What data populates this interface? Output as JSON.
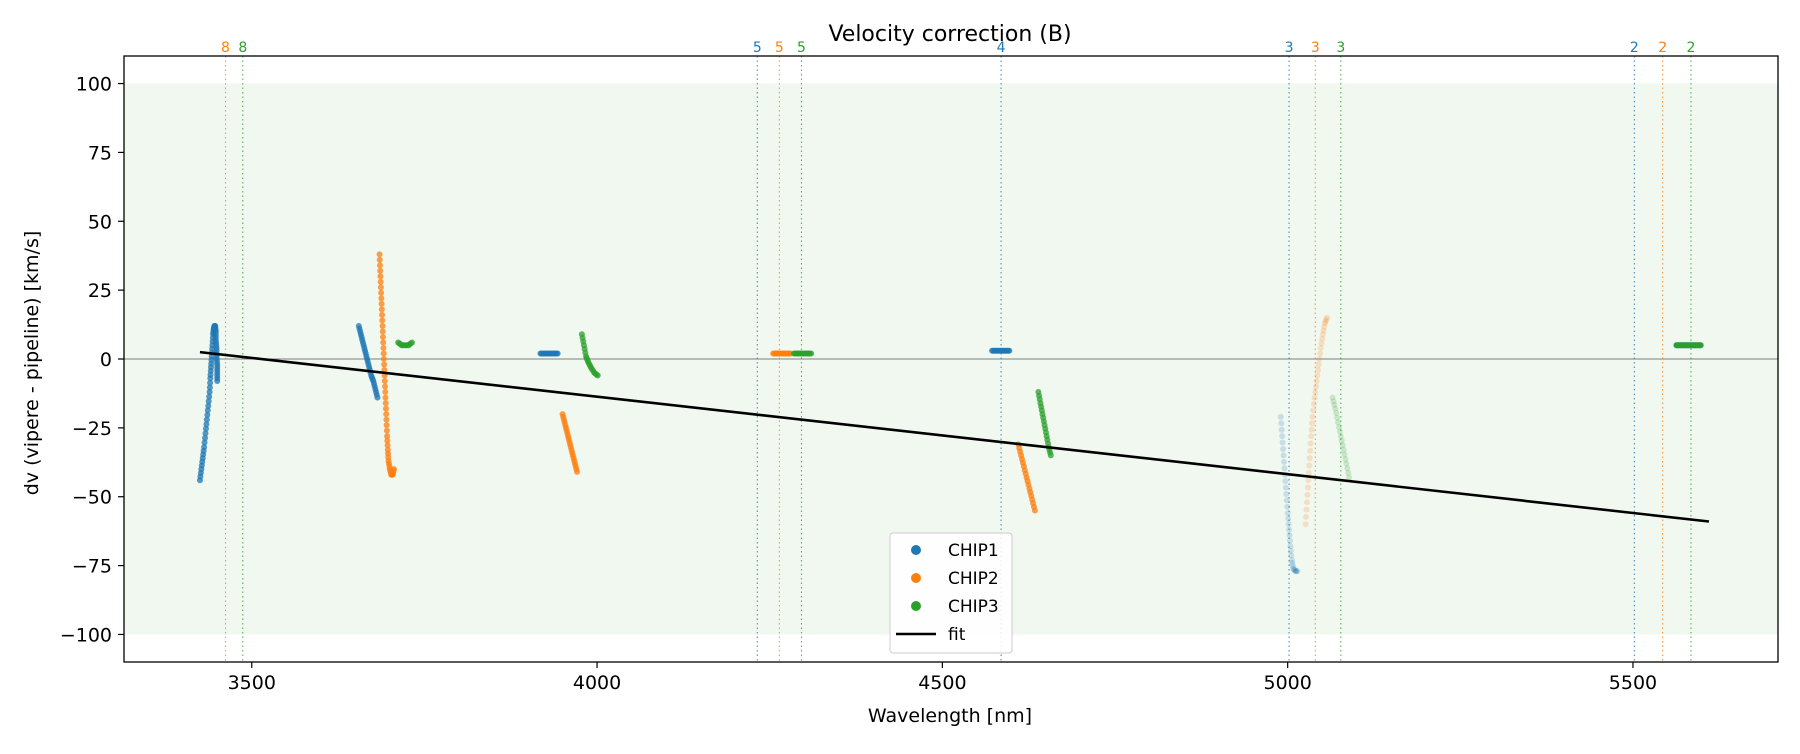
{
  "chart_data": {
    "type": "scatter",
    "title": "Velocity correction (B)",
    "xlabel": "Wavelength [nm]",
    "ylabel": "dv (vipere - pipeline) [km/s]",
    "xlim": [
      3315,
      5710
    ],
    "ylim": [
      -110,
      110
    ],
    "xticks": [
      3500,
      4000,
      4500,
      5000,
      5500
    ],
    "yticks": [
      -100,
      -75,
      -50,
      -25,
      0,
      25,
      50,
      75,
      100
    ],
    "shaded_band": [
      -100,
      100
    ],
    "zero_line": 0,
    "grid": false,
    "legend_position": "bottom-center",
    "colors": {
      "CHIP1": "#1f77b4",
      "CHIP2": "#ff7f0e",
      "CHIP3": "#2ca02c",
      "fit": "#000000",
      "band": "#2ca02c",
      "zero": "#808080"
    },
    "order_markers": [
      {
        "label": "8",
        "x": 3462,
        "series": "CHIP2"
      },
      {
        "label": "8",
        "x": 3487,
        "series": "CHIP3"
      },
      {
        "label": "5",
        "x": 4232,
        "series": "CHIP1"
      },
      {
        "label": "5",
        "x": 4264,
        "series": "CHIP2"
      },
      {
        "label": "5",
        "x": 4296,
        "series": "CHIP3"
      },
      {
        "label": "4",
        "x": 4585,
        "series": "CHIP1"
      },
      {
        "label": "3",
        "x": 5002,
        "series": "CHIP1"
      },
      {
        "label": "3",
        "x": 5040,
        "series": "CHIP2"
      },
      {
        "label": "3",
        "x": 5077,
        "series": "CHIP3"
      },
      {
        "label": "2",
        "x": 5502,
        "series": "CHIP1"
      },
      {
        "label": "2",
        "x": 5543,
        "series": "CHIP2"
      },
      {
        "label": "2",
        "x": 5584,
        "series": "CHIP3"
      }
    ],
    "series": [
      {
        "name": "CHIP1",
        "segments": [
          {
            "alpha": 0.75,
            "points": [
              [
                3425,
                -44
              ],
              [
                3427,
                -40
              ],
              [
                3429,
                -36
              ],
              [
                3431,
                -32
              ],
              [
                3433,
                -27
              ],
              [
                3435,
                -22
              ],
              [
                3437,
                -17
              ],
              [
                3439,
                -12
              ],
              [
                3440,
                -7
              ],
              [
                3441,
                -3
              ],
              [
                3442,
                1
              ],
              [
                3443,
                5
              ],
              [
                3444,
                9
              ],
              [
                3445,
                11
              ],
              [
                3446,
                12
              ],
              [
                3447,
                12
              ],
              [
                3448,
                10
              ],
              [
                3448,
                7
              ],
              [
                3449,
                4
              ],
              [
                3449,
                1
              ],
              [
                3450,
                -2
              ],
              [
                3450,
                -5
              ],
              [
                3450,
                -8
              ]
            ]
          },
          {
            "alpha": 0.75,
            "points": [
              [
                3655,
                12
              ],
              [
                3658,
                9
              ],
              [
                3661,
                6
              ],
              [
                3664,
                3
              ],
              [
                3667,
                0
              ],
              [
                3670,
                -3
              ],
              [
                3673,
                -6
              ],
              [
                3676,
                -8
              ],
              [
                3679,
                -11
              ],
              [
                3682,
                -14
              ]
            ]
          },
          {
            "alpha": 0.75,
            "points": [
              [
                3918,
                2
              ],
              [
                3923,
                2
              ],
              [
                3928,
                2
              ],
              [
                3933,
                2
              ],
              [
                3938,
                2
              ],
              [
                3943,
                2
              ]
            ]
          },
          {
            "alpha": 0.75,
            "points": [
              [
                4572,
                3
              ],
              [
                4577,
                3
              ],
              [
                4582,
                3
              ],
              [
                4587,
                3
              ],
              [
                4592,
                3
              ],
              [
                4597,
                3
              ]
            ]
          },
          {
            "alpha": 0.2,
            "points": [
              [
                4990,
                -21
              ],
              [
                4992,
                -28
              ],
              [
                4994,
                -35
              ],
              [
                4996,
                -42
              ],
              [
                4998,
                -49
              ],
              [
                5000,
                -56
              ],
              [
                5002,
                -62
              ],
              [
                5004,
                -68
              ],
              [
                5006,
                -73
              ],
              [
                5008,
                -76
              ],
              [
                5011,
                -77
              ],
              [
                5014,
                -77
              ]
            ]
          },
          {
            "alpha": 0.75,
            "points": [
              [
                5563,
                5
              ],
              [
                5568,
                5
              ],
              [
                5573,
                5
              ],
              [
                5578,
                5
              ],
              [
                5583,
                5
              ],
              [
                5588,
                5
              ],
              [
                5593,
                5
              ],
              [
                5598,
                5
              ]
            ]
          }
        ]
      },
      {
        "name": "CHIP2",
        "segments": [
          {
            "alpha": 0.75,
            "points": [
              [
                3685,
                38
              ],
              [
                3686,
                32
              ],
              [
                3687,
                26
              ],
              [
                3688,
                20
              ],
              [
                3689,
                14
              ],
              [
                3690,
                8
              ],
              [
                3691,
                2
              ],
              [
                3692,
                -4
              ],
              [
                3693,
                -10
              ],
              [
                3694,
                -16
              ],
              [
                3695,
                -22
              ],
              [
                3696,
                -28
              ],
              [
                3697,
                -33
              ],
              [
                3698,
                -37
              ],
              [
                3700,
                -40
              ],
              [
                3702,
                -42
              ],
              [
                3704,
                -42
              ],
              [
                3706,
                -40
              ]
            ]
          },
          {
            "alpha": 0.75,
            "points": [
              [
                3950,
                -20
              ],
              [
                3953,
                -23
              ],
              [
                3956,
                -26
              ],
              [
                3959,
                -29
              ],
              [
                3962,
                -32
              ],
              [
                3965,
                -35
              ],
              [
                3968,
                -38
              ],
              [
                3971,
                -41
              ]
            ]
          },
          {
            "alpha": 0.75,
            "points": [
              [
                4255,
                2
              ],
              [
                4260,
                2
              ],
              [
                4265,
                2
              ],
              [
                4270,
                2
              ],
              [
                4275,
                2
              ],
              [
                4280,
                2
              ]
            ]
          },
          {
            "alpha": 0.75,
            "points": [
              [
                4610,
                -31
              ],
              [
                4614,
                -35
              ],
              [
                4618,
                -39
              ],
              [
                4622,
                -43
              ],
              [
                4626,
                -47
              ],
              [
                4630,
                -51
              ],
              [
                4634,
                -55
              ]
            ]
          },
          {
            "alpha": 0.2,
            "points": [
              [
                5026,
                -60
              ],
              [
                5028,
                -52
              ],
              [
                5030,
                -44
              ],
              [
                5032,
                -36
              ],
              [
                5034,
                -28
              ],
              [
                5036,
                -21
              ],
              [
                5039,
                -14
              ],
              [
                5042,
                -8
              ],
              [
                5045,
                -2
              ],
              [
                5048,
                4
              ],
              [
                5051,
                9
              ],
              [
                5054,
                13
              ],
              [
                5057,
                15
              ]
            ]
          }
        ]
      },
      {
        "name": "CHIP3",
        "segments": [
          {
            "alpha": 0.75,
            "points": [
              [
                3712,
                6
              ],
              [
                3717,
                5
              ],
              [
                3722,
                5
              ],
              [
                3727,
                5
              ],
              [
                3732,
                6
              ]
            ]
          },
          {
            "alpha": 0.75,
            "points": [
              [
                3978,
                9
              ],
              [
                3981,
                5
              ],
              [
                3984,
                1
              ],
              [
                3987,
                -1
              ],
              [
                3991,
                -3
              ],
              [
                3996,
                -5
              ],
              [
                4001,
                -6
              ]
            ]
          },
          {
            "alpha": 0.75,
            "points": [
              [
                4285,
                2
              ],
              [
                4290,
                2
              ],
              [
                4295,
                2
              ],
              [
                4300,
                2
              ],
              [
                4305,
                2
              ],
              [
                4310,
                2
              ]
            ]
          },
          {
            "alpha": 0.75,
            "points": [
              [
                4639,
                -12
              ],
              [
                4642,
                -16
              ],
              [
                4645,
                -20
              ],
              [
                4648,
                -24
              ],
              [
                4651,
                -28
              ],
              [
                4654,
                -32
              ],
              [
                4657,
                -35
              ]
            ]
          },
          {
            "alpha": 0.2,
            "points": [
              [
                5065,
                -14
              ],
              [
                5069,
                -18
              ],
              [
                5073,
                -23
              ],
              [
                5077,
                -28
              ],
              [
                5081,
                -33
              ],
              [
                5085,
                -38
              ],
              [
                5089,
                -43
              ]
            ]
          },
          {
            "alpha": 0.75,
            "points": [
              [
                5563,
                5
              ],
              [
                5568,
                5
              ],
              [
                5573,
                5
              ],
              [
                5578,
                5
              ],
              [
                5583,
                5
              ],
              [
                5588,
                5
              ],
              [
                5593,
                5
              ],
              [
                5598,
                5
              ]
            ]
          }
        ]
      }
    ],
    "fit": {
      "name": "fit",
      "x": [
        3425,
        5610
      ],
      "y": [
        2.5,
        -59
      ]
    },
    "legend": [
      {
        "label": "CHIP1",
        "kind": "marker",
        "color": "#1f77b4"
      },
      {
        "label": "CHIP2",
        "kind": "marker",
        "color": "#ff7f0e"
      },
      {
        "label": "CHIP3",
        "kind": "marker",
        "color": "#2ca02c"
      },
      {
        "label": "fit",
        "kind": "line",
        "color": "#000000"
      }
    ]
  }
}
